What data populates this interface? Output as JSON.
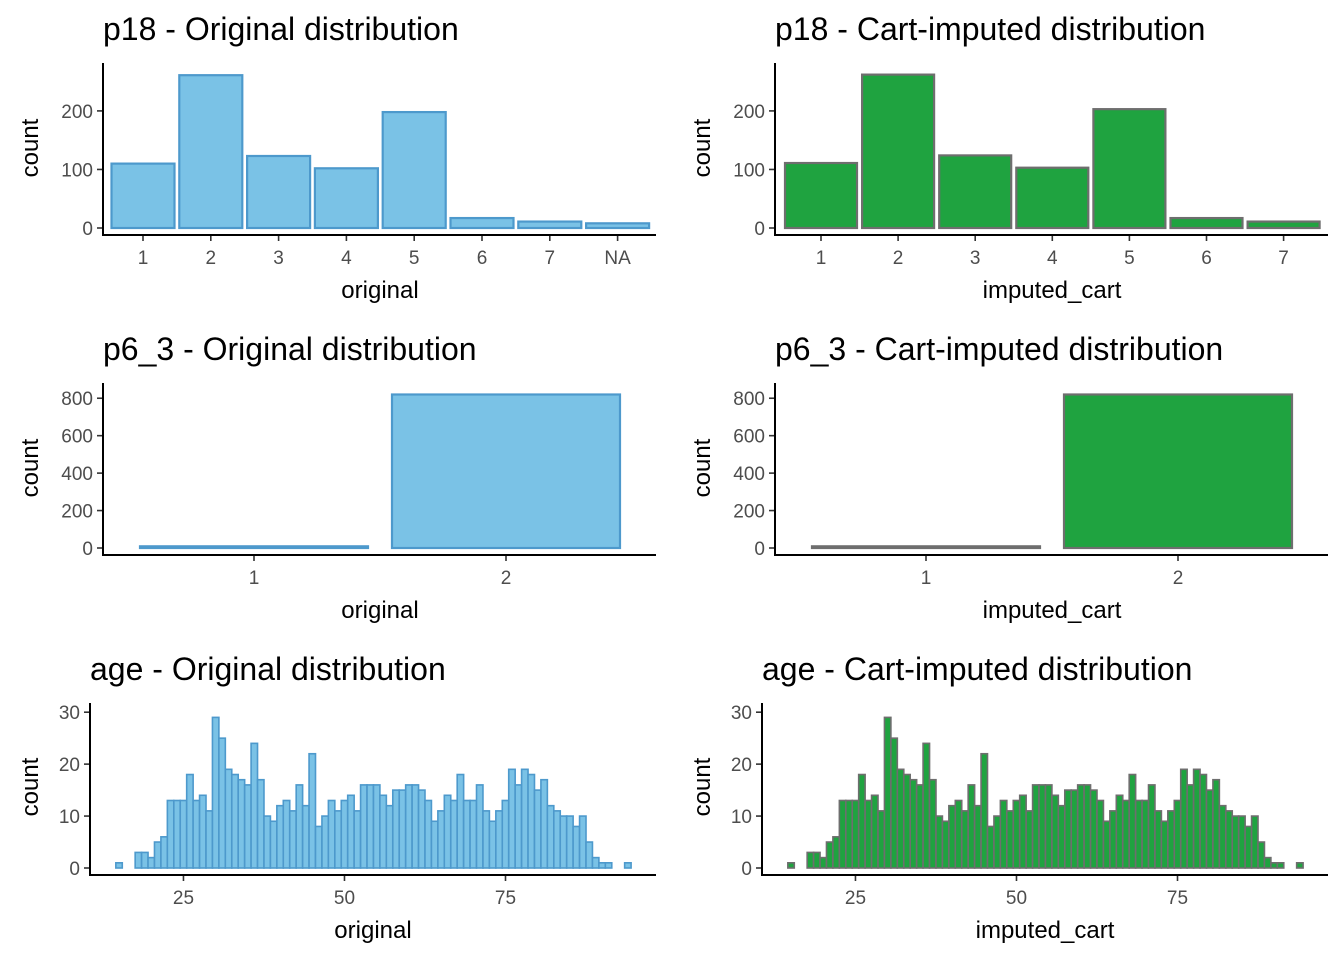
{
  "styles": {
    "original": {
      "fill": "#7AC2E6",
      "stroke": "#4D99CC"
    },
    "imputed": {
      "fill": "#1FA340",
      "stroke": "#6E6E6E"
    }
  },
  "chart_data": [
    {
      "id": "p18-original",
      "type": "bar",
      "style": "original",
      "title": "p18 - Original distribution",
      "xlabel": "original",
      "ylabel": "count",
      "categories": [
        "1",
        "2",
        "3",
        "4",
        "5",
        "6",
        "7",
        "NA"
      ],
      "values": [
        110,
        261,
        123,
        102,
        198,
        17,
        11,
        8
      ],
      "ylim": [
        0,
        275
      ],
      "yticks": [
        0,
        100,
        200
      ]
    },
    {
      "id": "p18-imputed",
      "type": "bar",
      "style": "imputed",
      "title": "p18 - Cart-imputed distribution",
      "xlabel": "imputed_cart",
      "ylabel": "count",
      "categories": [
        "1",
        "2",
        "3",
        "4",
        "5",
        "6",
        "7"
      ],
      "values": [
        111,
        262,
        124,
        103,
        203,
        17,
        11
      ],
      "ylim": [
        0,
        275
      ],
      "yticks": [
        0,
        100,
        200
      ]
    },
    {
      "id": "p6-original",
      "type": "bar",
      "style": "original",
      "title": "p6_3 - Original distribution",
      "xlabel": "original",
      "ylabel": "count",
      "categories": [
        "1",
        "2"
      ],
      "values": [
        9,
        820
      ],
      "ylim": [
        0,
        860
      ],
      "yticks": [
        0,
        200,
        400,
        600,
        800
      ]
    },
    {
      "id": "p6-imputed",
      "type": "bar",
      "style": "imputed",
      "title": "p6_3 - Cart-imputed distribution",
      "xlabel": "imputed_cart",
      "ylabel": "count",
      "categories": [
        "1",
        "2"
      ],
      "values": [
        9,
        820
      ],
      "ylim": [
        0,
        860
      ],
      "yticks": [
        0,
        200,
        400,
        600,
        800
      ]
    },
    {
      "id": "age-original",
      "type": "histogram",
      "style": "original",
      "title": "age - Original distribution",
      "xlabel": "original",
      "ylabel": "count",
      "xlim": [
        12.6,
        96.1
      ],
      "xticks": [
        25,
        50,
        75
      ],
      "ylim": [
        0,
        31
      ],
      "yticks": [
        0,
        10,
        20,
        30
      ],
      "bins": [
        [
          14.5,
          15.5,
          1
        ],
        [
          17.5,
          18.5,
          3
        ],
        [
          18.5,
          19.5,
          3
        ],
        [
          19.5,
          20.5,
          2
        ],
        [
          20.5,
          21.5,
          5
        ],
        [
          21.5,
          22.5,
          6
        ],
        [
          22.5,
          23.5,
          13
        ],
        [
          23.5,
          24.5,
          13
        ],
        [
          24.5,
          25.5,
          13
        ],
        [
          25.5,
          26.5,
          18
        ],
        [
          26.5,
          27.5,
          13
        ],
        [
          27.5,
          28.5,
          14
        ],
        [
          28.5,
          29.5,
          11
        ],
        [
          29.5,
          30.5,
          29
        ],
        [
          30.5,
          31.5,
          25
        ],
        [
          31.5,
          32.5,
          19
        ],
        [
          32.5,
          33.5,
          18
        ],
        [
          33.5,
          34.5,
          17
        ],
        [
          34.5,
          35.5,
          16
        ],
        [
          35.5,
          36.5,
          24
        ],
        [
          36.5,
          37.5,
          17
        ],
        [
          37.5,
          38.5,
          10
        ],
        [
          38.5,
          39.5,
          9
        ],
        [
          39.5,
          40.5,
          12
        ],
        [
          40.5,
          41.5,
          13
        ],
        [
          41.5,
          42.5,
          11
        ],
        [
          42.5,
          43.5,
          16
        ],
        [
          43.5,
          44.5,
          12
        ],
        [
          44.5,
          45.5,
          22
        ],
        [
          45.5,
          46.5,
          8
        ],
        [
          46.5,
          47.5,
          10
        ],
        [
          47.5,
          48.5,
          13
        ],
        [
          48.5,
          49.5,
          11
        ],
        [
          49.5,
          50.5,
          13
        ],
        [
          50.5,
          51.5,
          14
        ],
        [
          51.5,
          52.5,
          11
        ],
        [
          52.5,
          53.5,
          16
        ],
        [
          53.5,
          54.5,
          16
        ],
        [
          54.5,
          55.5,
          16
        ],
        [
          55.5,
          56.5,
          14
        ],
        [
          56.5,
          57.5,
          12
        ],
        [
          57.5,
          58.5,
          15
        ],
        [
          58.5,
          59.5,
          15
        ],
        [
          59.5,
          60.5,
          16
        ],
        [
          60.5,
          61.5,
          16
        ],
        [
          61.5,
          62.5,
          15
        ],
        [
          62.5,
          63.5,
          13
        ],
        [
          63.5,
          64.5,
          9
        ],
        [
          64.5,
          65.5,
          11
        ],
        [
          65.5,
          66.5,
          14
        ],
        [
          66.5,
          67.5,
          13
        ],
        [
          67.5,
          68.5,
          18
        ],
        [
          68.5,
          69.5,
          13
        ],
        [
          69.5,
          70.5,
          13
        ],
        [
          70.5,
          71.5,
          16
        ],
        [
          71.5,
          72.5,
          11
        ],
        [
          72.5,
          73.5,
          9
        ],
        [
          73.5,
          74.5,
          11
        ],
        [
          74.5,
          75.5,
          13
        ],
        [
          75.5,
          76.5,
          19
        ],
        [
          76.5,
          77.5,
          16
        ],
        [
          77.5,
          78.5,
          19
        ],
        [
          78.5,
          79.5,
          18
        ],
        [
          79.5,
          80.5,
          15
        ],
        [
          80.5,
          81.5,
          17
        ],
        [
          81.5,
          82.5,
          12
        ],
        [
          82.5,
          83.5,
          11
        ],
        [
          83.5,
          84.5,
          10
        ],
        [
          84.5,
          85.5,
          10
        ],
        [
          85.5,
          86.5,
          8
        ],
        [
          86.5,
          87.5,
          10
        ],
        [
          87.5,
          88.5,
          5
        ],
        [
          88.5,
          89.5,
          2
        ],
        [
          89.5,
          90.5,
          1
        ],
        [
          90.5,
          91.5,
          1
        ],
        [
          93.5,
          94.5,
          1
        ]
      ]
    },
    {
      "id": "age-imputed",
      "type": "histogram",
      "style": "imputed",
      "title": "age - Cart-imputed distribution",
      "xlabel": "imputed_cart",
      "ylabel": "count",
      "xlim": [
        12.6,
        96.1
      ],
      "xticks": [
        25,
        50,
        75
      ],
      "ylim": [
        0,
        31
      ],
      "yticks": [
        0,
        10,
        20,
        30
      ],
      "bins": [
        [
          14.5,
          15.5,
          1
        ],
        [
          17.5,
          18.5,
          3
        ],
        [
          18.5,
          19.5,
          3
        ],
        [
          19.5,
          20.5,
          2
        ],
        [
          20.5,
          21.5,
          5
        ],
        [
          21.5,
          22.5,
          6
        ],
        [
          22.5,
          23.5,
          13
        ],
        [
          23.5,
          24.5,
          13
        ],
        [
          24.5,
          25.5,
          13
        ],
        [
          25.5,
          26.5,
          18
        ],
        [
          26.5,
          27.5,
          13
        ],
        [
          27.5,
          28.5,
          14
        ],
        [
          28.5,
          29.5,
          11
        ],
        [
          29.5,
          30.5,
          29
        ],
        [
          30.5,
          31.5,
          25
        ],
        [
          31.5,
          32.5,
          19
        ],
        [
          32.5,
          33.5,
          18
        ],
        [
          33.5,
          34.5,
          17
        ],
        [
          34.5,
          35.5,
          16
        ],
        [
          35.5,
          36.5,
          24
        ],
        [
          36.5,
          37.5,
          17
        ],
        [
          37.5,
          38.5,
          10
        ],
        [
          38.5,
          39.5,
          9
        ],
        [
          39.5,
          40.5,
          12
        ],
        [
          40.5,
          41.5,
          13
        ],
        [
          41.5,
          42.5,
          11
        ],
        [
          42.5,
          43.5,
          16
        ],
        [
          43.5,
          44.5,
          12
        ],
        [
          44.5,
          45.5,
          22
        ],
        [
          45.5,
          46.5,
          8
        ],
        [
          46.5,
          47.5,
          10
        ],
        [
          47.5,
          48.5,
          13
        ],
        [
          48.5,
          49.5,
          11
        ],
        [
          49.5,
          50.5,
          13
        ],
        [
          50.5,
          51.5,
          14
        ],
        [
          51.5,
          52.5,
          11
        ],
        [
          52.5,
          53.5,
          16
        ],
        [
          53.5,
          54.5,
          16
        ],
        [
          54.5,
          55.5,
          16
        ],
        [
          55.5,
          56.5,
          14
        ],
        [
          56.5,
          57.5,
          12
        ],
        [
          57.5,
          58.5,
          15
        ],
        [
          58.5,
          59.5,
          15
        ],
        [
          59.5,
          60.5,
          16
        ],
        [
          60.5,
          61.5,
          16
        ],
        [
          61.5,
          62.5,
          15
        ],
        [
          62.5,
          63.5,
          13
        ],
        [
          63.5,
          64.5,
          9
        ],
        [
          64.5,
          65.5,
          11
        ],
        [
          65.5,
          66.5,
          14
        ],
        [
          66.5,
          67.5,
          13
        ],
        [
          67.5,
          68.5,
          18
        ],
        [
          68.5,
          69.5,
          13
        ],
        [
          69.5,
          70.5,
          13
        ],
        [
          70.5,
          71.5,
          16
        ],
        [
          71.5,
          72.5,
          11
        ],
        [
          72.5,
          73.5,
          9
        ],
        [
          73.5,
          74.5,
          11
        ],
        [
          74.5,
          75.5,
          13
        ],
        [
          75.5,
          76.5,
          19
        ],
        [
          76.5,
          77.5,
          16
        ],
        [
          77.5,
          78.5,
          19
        ],
        [
          78.5,
          79.5,
          18
        ],
        [
          79.5,
          80.5,
          15
        ],
        [
          80.5,
          81.5,
          17
        ],
        [
          81.5,
          82.5,
          12
        ],
        [
          82.5,
          83.5,
          11
        ],
        [
          83.5,
          84.5,
          10
        ],
        [
          84.5,
          85.5,
          10
        ],
        [
          85.5,
          86.5,
          8
        ],
        [
          86.5,
          87.5,
          10
        ],
        [
          87.5,
          88.5,
          5
        ],
        [
          88.5,
          89.5,
          2
        ],
        [
          89.5,
          90.5,
          1
        ],
        [
          90.5,
          91.5,
          1
        ],
        [
          93.5,
          94.5,
          1
        ]
      ]
    }
  ]
}
